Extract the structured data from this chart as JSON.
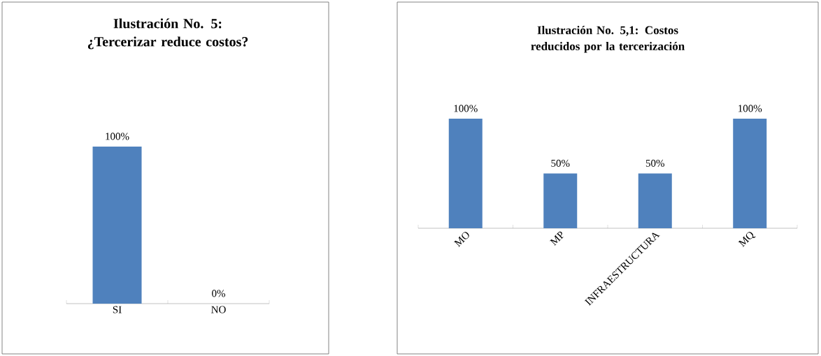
{
  "chart_data": [
    {
      "type": "bar",
      "title": "Ilustración No. 5:",
      "subtitle": "¿Tercerizar reduce costos?",
      "categories": [
        "SI",
        "NO"
      ],
      "values": [
        100,
        0
      ],
      "value_labels": [
        "100%",
        "0%"
      ],
      "color": "#4f81bd"
    },
    {
      "type": "bar",
      "title": "Ilustración No. 5,1: Costos reducidos por la tercerización",
      "categories": [
        "MO",
        "MP",
        "INFRAESTRUCTURA",
        "MQ"
      ],
      "values": [
        100,
        50,
        50,
        100
      ],
      "value_labels": [
        "100%",
        "50%",
        "50%",
        "100%"
      ],
      "color": "#4f81bd"
    }
  ]
}
